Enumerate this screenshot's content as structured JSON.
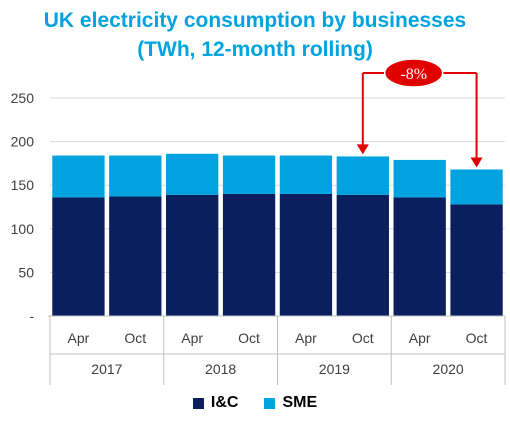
{
  "chart_data": {
    "type": "bar",
    "stacked": true,
    "title_lines": [
      "UK electricity consumption by businesses",
      "(TWh, 12-month rolling)"
    ],
    "categories": [
      "Apr",
      "Oct",
      "Apr",
      "Oct",
      "Apr",
      "Oct",
      "Apr",
      "Oct"
    ],
    "groups": [
      {
        "label": "2017",
        "span": 2
      },
      {
        "label": "2018",
        "span": 2
      },
      {
        "label": "2019",
        "span": 2
      },
      {
        "label": "2020",
        "span": 2
      }
    ],
    "series": [
      {
        "name": "I&C",
        "color": "#0b1f5e",
        "values": [
          136,
          137,
          139,
          140,
          140,
          139,
          136,
          128
        ]
      },
      {
        "name": "SME",
        "color": "#00a3e0",
        "values": [
          48,
          47,
          47,
          44,
          44,
          44,
          43,
          40
        ]
      }
    ],
    "ylim": [
      0,
      250
    ],
    "yticks": [
      {
        "value": 0,
        "label": "-"
      },
      {
        "value": 50,
        "label": "50"
      },
      {
        "value": 100,
        "label": "100"
      },
      {
        "value": 150,
        "label": "150"
      },
      {
        "value": 200,
        "label": "200"
      },
      {
        "value": 250,
        "label": "250"
      }
    ],
    "grid": true,
    "legend_position": "bottom",
    "annotation": {
      "text": "-8%",
      "from_index": 5,
      "to_index": 7,
      "color": "#e00000"
    }
  }
}
